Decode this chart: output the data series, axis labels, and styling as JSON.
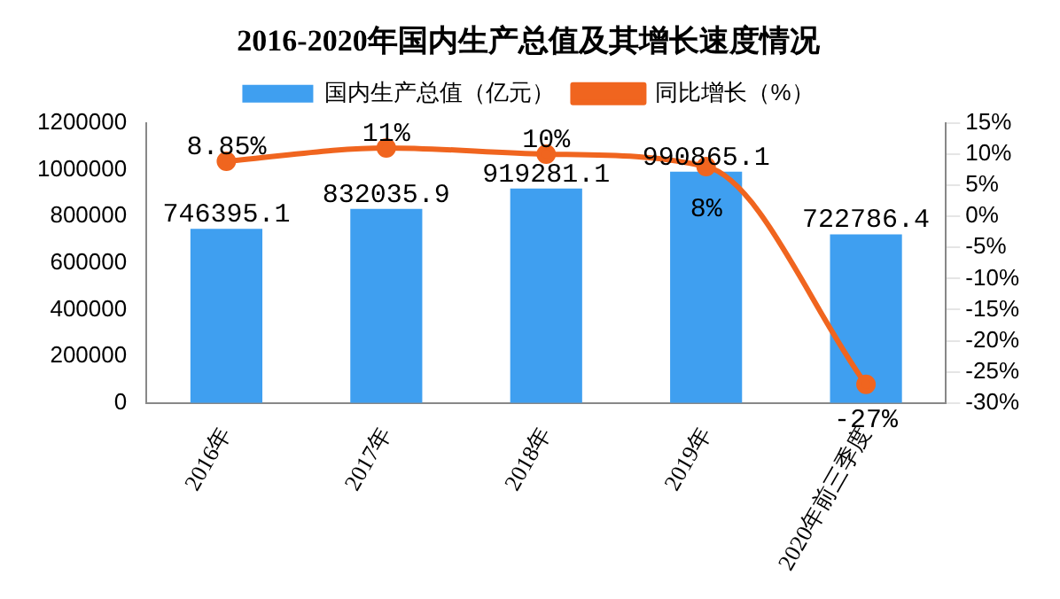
{
  "chart_data": {
    "type": "bar",
    "title": "2016-2020年国内生产总值及其增长速度情况",
    "categories": [
      "2016年",
      "2017年",
      "2018年",
      "2019年",
      "2020年前三季度"
    ],
    "series": [
      {
        "name": "国内生产总值（亿元）",
        "color": "#3f9ff0",
        "values": [
          746395.1,
          832035.9,
          919281.1,
          990865.1,
          722786.4
        ],
        "value_labels": [
          "746395.1",
          "832035.9",
          "919281.1",
          "990865.1",
          "722786.4"
        ]
      },
      {
        "name": "同比增长（%）",
        "type": "line",
        "axis": "y2",
        "color": "#f0651f",
        "marker": "circle",
        "values": [
          8.85,
          11,
          10,
          8,
          -27
        ],
        "value_labels": [
          "8.85%",
          "11%",
          "10%",
          "8%",
          "-27%"
        ]
      }
    ],
    "ylim": [
      0,
      1200000
    ],
    "yticks": [
      0,
      200000,
      400000,
      600000,
      800000,
      1000000,
      1200000
    ],
    "y2lim": [
      -30,
      15
    ],
    "y2ticks": [
      {
        "value": -30,
        "label": "-30%"
      },
      {
        "value": -25,
        "label": "-25%"
      },
      {
        "value": -20,
        "label": "-20%"
      },
      {
        "value": -15,
        "label": "-15%"
      },
      {
        "value": -10,
        "label": "-10%"
      },
      {
        "value": -5,
        "label": "-5%"
      },
      {
        "value": 0,
        "label": "0%"
      },
      {
        "value": 5,
        "label": "5%"
      },
      {
        "value": 10,
        "label": "10%"
      },
      {
        "value": 15,
        "label": "15%"
      }
    ],
    "grid": false,
    "legend": "top"
  }
}
